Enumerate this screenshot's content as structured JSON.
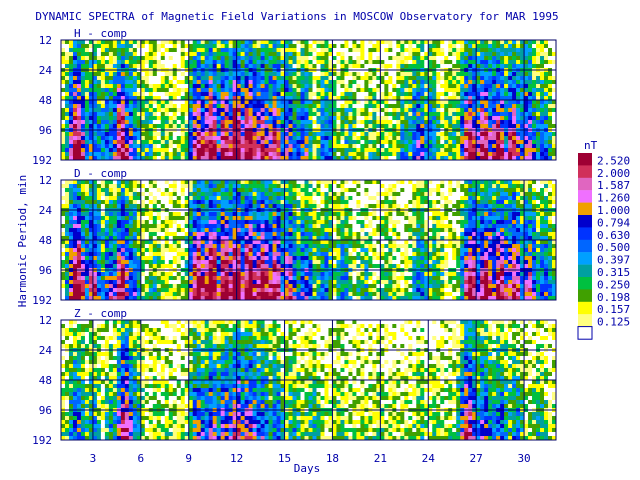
{
  "chart_data": {
    "type": "heatmap",
    "title": "DYNAMIC SPECTRA of Magnetic Field Variations in MOSCOW Observatory for MAR 1995",
    "xlabel": "Days",
    "ylabel": "Harmonic Period, min",
    "x_ticks": [
      3,
      6,
      9,
      12,
      15,
      18,
      21,
      24,
      27,
      30
    ],
    "xlim": [
      1,
      32
    ],
    "y_ticks": [
      12,
      24,
      48,
      96,
      192
    ],
    "y_scale": "log2",
    "y_inverted": true,
    "grid": true,
    "panels": [
      {
        "label": "H - comp",
        "activity": [
          [
            2,
            0.95
          ],
          [
            3,
            0.55
          ],
          [
            4,
            0.5
          ],
          [
            4.8,
            0.9
          ],
          [
            5.3,
            0.6
          ],
          [
            6.5,
            0.3
          ],
          [
            7.5,
            0.25
          ],
          [
            9.6,
            0.85
          ],
          [
            10.4,
            0.95
          ],
          [
            11.3,
            0.9
          ],
          [
            12,
            1.0
          ],
          [
            12.8,
            0.95
          ],
          [
            13.6,
            0.85
          ],
          [
            14.4,
            0.8
          ],
          [
            15.2,
            0.65
          ],
          [
            16.2,
            0.55
          ],
          [
            17.6,
            0.5
          ],
          [
            19,
            0.3
          ],
          [
            20.5,
            0.25
          ],
          [
            22.5,
            0.35
          ],
          [
            23.4,
            0.6
          ],
          [
            24.2,
            0.45
          ],
          [
            25.5,
            0.3
          ],
          [
            26.6,
            0.9
          ],
          [
            27.5,
            0.9
          ],
          [
            28.4,
            0.85
          ],
          [
            29.3,
            0.8
          ],
          [
            30.2,
            0.7
          ],
          [
            31.2,
            0.45
          ]
        ]
      },
      {
        "label": "D - comp",
        "activity": [
          [
            2,
            1.0
          ],
          [
            3,
            0.75
          ],
          [
            4.1,
            0.6
          ],
          [
            4.8,
            0.85
          ],
          [
            5.5,
            0.55
          ],
          [
            6.8,
            0.3
          ],
          [
            9.6,
            0.95
          ],
          [
            10.4,
            1.0
          ],
          [
            11.3,
            1.0
          ],
          [
            12,
            1.0
          ],
          [
            12.8,
            1.0
          ],
          [
            13.6,
            0.95
          ],
          [
            14.4,
            0.9
          ],
          [
            15.3,
            0.75
          ],
          [
            16.3,
            0.6
          ],
          [
            17.5,
            0.45
          ],
          [
            18.7,
            0.4
          ],
          [
            20,
            0.3
          ],
          [
            21.5,
            0.25
          ],
          [
            23.5,
            0.45
          ],
          [
            24.5,
            0.35
          ],
          [
            26.7,
            0.95
          ],
          [
            27.6,
            0.9
          ],
          [
            28.5,
            0.9
          ],
          [
            29.4,
            0.85
          ],
          [
            30.3,
            0.7
          ],
          [
            31.3,
            0.5
          ]
        ]
      },
      {
        "label": "Z - comp",
        "activity": [
          [
            2,
            0.5
          ],
          [
            3,
            0.35
          ],
          [
            4.2,
            0.35
          ],
          [
            5,
            0.85
          ],
          [
            5.6,
            0.4
          ],
          [
            7,
            0.2
          ],
          [
            9.6,
            0.6
          ],
          [
            10.4,
            0.6
          ],
          [
            11.3,
            0.65
          ],
          [
            12,
            0.75
          ],
          [
            12.8,
            0.7
          ],
          [
            13.6,
            0.55
          ],
          [
            14.5,
            0.45
          ],
          [
            15.5,
            0.35
          ],
          [
            16.8,
            0.3
          ],
          [
            18.5,
            0.25
          ],
          [
            21,
            0.2
          ],
          [
            23.5,
            0.25
          ],
          [
            24.5,
            0.2
          ],
          [
            26.5,
            0.8
          ],
          [
            27.5,
            0.6
          ],
          [
            28.5,
            0.5
          ],
          [
            29.5,
            0.4
          ],
          [
            31,
            0.3
          ]
        ]
      }
    ],
    "colorbar": {
      "unit": "nT",
      "levels": [
        2.52,
        2.0,
        1.587,
        1.26,
        1.0,
        0.794,
        0.63,
        0.5,
        0.397,
        0.315,
        0.25,
        0.198,
        0.157,
        0.125
      ],
      "labels": [
        "2.520",
        "2.000",
        "1.587",
        "1.260",
        "1.000",
        "0.794",
        "0.630",
        "0.500",
        "0.397",
        "0.315",
        "0.250",
        "0.198",
        "0.157",
        "0.125"
      ],
      "colors": [
        "#9e0033",
        "#d0305a",
        "#e066c0",
        "#f070ff",
        "#f0a000",
        "#0000cc",
        "#0033ff",
        "#0066ff",
        "#00a0ff",
        "#00a0a0",
        "#00c040",
        "#40a000",
        "#ffff00",
        "#ffff80",
        "#ffffff"
      ]
    }
  }
}
